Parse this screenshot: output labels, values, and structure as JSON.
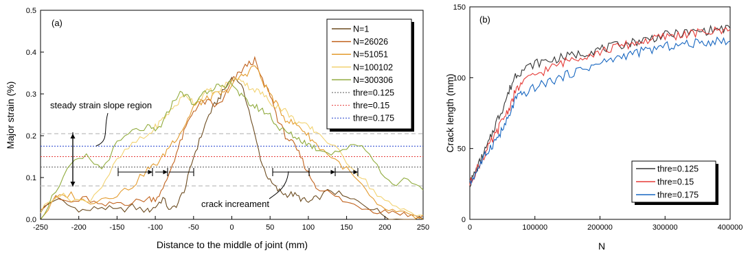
{
  "chart_data": [
    {
      "type": "line",
      "panel_label": "(a)",
      "xlabel": "Distance to the middle of joint (mm)",
      "ylabel": "Major strain (%)",
      "xlim": [
        -250,
        250
      ],
      "ylim": [
        0,
        0.5
      ],
      "xticks": [
        -250,
        -200,
        -150,
        -100,
        -50,
        0,
        50,
        100,
        150,
        200,
        250
      ],
      "yticks": [
        0.0,
        0.1,
        0.2,
        0.3,
        0.4,
        0.5
      ],
      "tick_labels_x": [
        "-250",
        "-200",
        "-150",
        "-100",
        "-50",
        "0",
        "50",
        "100",
        "150",
        "200",
        "250"
      ],
      "tick_labels_y": [
        "0.0",
        "0.1",
        "0.2",
        "0.3",
        "0.4",
        "0.5"
      ],
      "legend_position": "top-right",
      "series": [
        {
          "name": "N=1",
          "color": "#6b4a1e",
          "x": [
            -250,
            -230,
            -210,
            -190,
            -170,
            -150,
            -130,
            -110,
            -100,
            -90,
            -80,
            -70,
            -60,
            -50,
            -40,
            -30,
            -20,
            -10,
            0,
            10,
            20,
            30,
            40,
            50,
            60,
            70,
            80,
            90,
            100,
            110,
            130,
            150,
            170,
            190,
            210,
            230,
            250
          ],
          "y": [
            0.02,
            0.05,
            0.03,
            0.02,
            0.03,
            0.02,
            0.03,
            0.02,
            0.03,
            0.05,
            0.02,
            0.04,
            0.08,
            0.15,
            0.2,
            0.25,
            0.28,
            0.31,
            0.34,
            0.33,
            0.28,
            0.2,
            0.13,
            0.09,
            0.07,
            0.06,
            0.06,
            0.05,
            0.04,
            0.05,
            0.07,
            0.05,
            0.04,
            0.02,
            0.0,
            0.0,
            0.0
          ]
        },
        {
          "name": "N=26026",
          "color": "#c0601a",
          "x": [
            -250,
            -230,
            -210,
            -190,
            -170,
            -150,
            -130,
            -110,
            -100,
            -90,
            -80,
            -70,
            -60,
            -50,
            -40,
            -30,
            -20,
            -10,
            0,
            10,
            20,
            30,
            40,
            50,
            60,
            70,
            80,
            90,
            100,
            110,
            130,
            150,
            170,
            190,
            210,
            230,
            250
          ],
          "y": [
            0.03,
            0.05,
            0.04,
            0.05,
            0.03,
            0.04,
            0.04,
            0.05,
            0.05,
            0.07,
            0.12,
            0.17,
            0.22,
            0.26,
            0.28,
            0.28,
            0.27,
            0.29,
            0.33,
            0.35,
            0.37,
            0.38,
            0.33,
            0.3,
            0.24,
            0.2,
            0.18,
            0.15,
            0.11,
            0.08,
            0.06,
            0.04,
            0.03,
            0.02,
            0.02,
            0.01,
            0.01
          ]
        },
        {
          "name": "N=51051",
          "color": "#e39a2c",
          "x": [
            -250,
            -230,
            -210,
            -190,
            -170,
            -150,
            -130,
            -110,
            -100,
            -90,
            -80,
            -70,
            -60,
            -50,
            -40,
            -30,
            -20,
            -10,
            0,
            10,
            20,
            30,
            40,
            50,
            60,
            70,
            80,
            90,
            100,
            110,
            130,
            150,
            170,
            190,
            210,
            230,
            250
          ],
          "y": [
            0.0,
            0.05,
            0.06,
            0.04,
            0.05,
            0.06,
            0.08,
            0.12,
            0.13,
            0.15,
            0.18,
            0.2,
            0.23,
            0.27,
            0.28,
            0.29,
            0.3,
            0.3,
            0.32,
            0.34,
            0.35,
            0.37,
            0.33,
            0.3,
            0.27,
            0.24,
            0.23,
            0.22,
            0.2,
            0.18,
            0.15,
            0.12,
            0.08,
            0.03,
            0.02,
            0.01,
            0.0
          ]
        },
        {
          "name": "N=100102",
          "color": "#f2d270",
          "x": [
            -250,
            -230,
            -210,
            -190,
            -170,
            -150,
            -130,
            -110,
            -100,
            -90,
            -80,
            -70,
            -60,
            -50,
            -40,
            -30,
            -20,
            -10,
            0,
            10,
            20,
            30,
            40,
            50,
            60,
            70,
            80,
            90,
            100,
            110,
            130,
            150,
            170,
            190,
            210,
            230,
            250
          ],
          "y": [
            0.02,
            0.06,
            0.05,
            0.04,
            0.08,
            0.14,
            0.18,
            0.2,
            0.22,
            0.24,
            0.26,
            0.28,
            0.3,
            0.28,
            0.29,
            0.31,
            0.3,
            0.32,
            0.33,
            0.34,
            0.32,
            0.31,
            0.3,
            0.28,
            0.27,
            0.26,
            0.24,
            0.23,
            0.22,
            0.21,
            0.18,
            0.14,
            0.1,
            0.06,
            0.03,
            0.02,
            0.01
          ]
        },
        {
          "name": "N=300306",
          "color": "#8faa3b",
          "x": [
            -250,
            -230,
            -210,
            -190,
            -170,
            -150,
            -130,
            -110,
            -100,
            -90,
            -80,
            -70,
            -60,
            -50,
            -40,
            -30,
            -20,
            -10,
            0,
            10,
            20,
            30,
            40,
            50,
            60,
            70,
            80,
            90,
            100,
            110,
            130,
            150,
            170,
            190,
            210,
            230,
            250
          ],
          "y": [
            0.0,
            0.07,
            0.13,
            0.15,
            0.12,
            0.18,
            0.21,
            0.22,
            0.21,
            0.23,
            0.27,
            0.3,
            0.3,
            0.27,
            0.3,
            0.31,
            0.32,
            0.31,
            0.33,
            0.3,
            0.28,
            0.27,
            0.26,
            0.25,
            0.22,
            0.21,
            0.2,
            0.19,
            0.18,
            0.17,
            0.16,
            0.17,
            0.18,
            0.13,
            0.08,
            0.1,
            0.07
          ]
        }
      ],
      "thresholds": [
        {
          "name": "thre=0.125",
          "value": 0.125,
          "color": "#555555",
          "dash": "2,2"
        },
        {
          "name": "thre=0.15",
          "value": 0.15,
          "color": "#e53935",
          "dash": "2,2"
        },
        {
          "name": "thre=0.175",
          "value": 0.175,
          "color": "#1e3fcc",
          "dash": "2,2"
        }
      ],
      "reference_lines": [
        0.08,
        0.205
      ],
      "annotations": [
        "steady strain slope region",
        "crack increament"
      ]
    },
    {
      "type": "line",
      "panel_label": "(b)",
      "xlabel": "N",
      "ylabel": "Crack length (mm)",
      "xlim": [
        0,
        400000
      ],
      "ylim": [
        0,
        150
      ],
      "xticks": [
        0,
        100000,
        200000,
        300000,
        400000
      ],
      "yticks": [
        0,
        50,
        100,
        150
      ],
      "tick_labels_x": [
        "0",
        "100000",
        "200000",
        "300000",
        "400000"
      ],
      "tick_labels_y": [
        "0",
        "50",
        "100",
        "150"
      ],
      "legend_position": "bottom-right",
      "series": [
        {
          "name": "thre=0.125",
          "color": "#333333",
          "x": [
            0,
            10000,
            20000,
            30000,
            40000,
            50000,
            60000,
            70000,
            80000,
            100000,
            120000,
            140000,
            160000,
            180000,
            200000,
            220000,
            240000,
            260000,
            280000,
            300000,
            320000,
            340000,
            360000,
            380000,
            400000
          ],
          "y": [
            25,
            35,
            45,
            55,
            68,
            78,
            90,
            102,
            105,
            110,
            112,
            114,
            116,
            118,
            120,
            122,
            124,
            126,
            128,
            130,
            131,
            132,
            133,
            134,
            135
          ]
        },
        {
          "name": "thre=0.15",
          "color": "#e53935",
          "x": [
            0,
            10000,
            20000,
            30000,
            40000,
            50000,
            60000,
            70000,
            80000,
            100000,
            120000,
            140000,
            160000,
            180000,
            200000,
            220000,
            240000,
            260000,
            280000,
            300000,
            320000,
            340000,
            360000,
            380000,
            400000
          ],
          "y": [
            25,
            35,
            43,
            52,
            60,
            70,
            78,
            90,
            96,
            102,
            106,
            110,
            114,
            116,
            118,
            121,
            123,
            125,
            127,
            129,
            130,
            131,
            132,
            133,
            134
          ]
        },
        {
          "name": "thre=0.175",
          "color": "#1565c0",
          "x": [
            0,
            10000,
            20000,
            30000,
            40000,
            50000,
            60000,
            70000,
            80000,
            100000,
            120000,
            140000,
            160000,
            180000,
            200000,
            220000,
            240000,
            260000,
            280000,
            300000,
            320000,
            340000,
            360000,
            380000,
            400000
          ],
          "y": [
            25,
            34,
            42,
            50,
            56,
            63,
            72,
            85,
            88,
            93,
            97,
            100,
            104,
            107,
            110,
            113,
            116,
            118,
            120,
            122,
            123,
            124,
            125,
            126,
            126
          ]
        }
      ]
    }
  ]
}
